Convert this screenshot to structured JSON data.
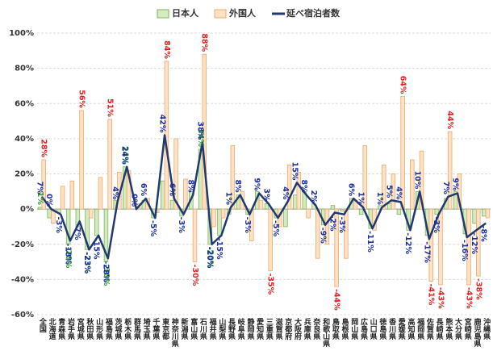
{
  "chart_data": {
    "type": "bar_line",
    "categories": [
      "全国",
      "北海道",
      "青森県",
      "岩手県",
      "宮城県",
      "秋田県",
      "山形県",
      "福島県",
      "茨城県",
      "栃木県",
      "群馬県",
      "埼玉県",
      "千葉県",
      "東京都",
      "神奈川県",
      "新潟県",
      "富山県",
      "石川県",
      "福井県",
      "山梨県",
      "長野県",
      "岐阜県",
      "静岡県",
      "愛知県",
      "三重県",
      "滋賀県",
      "京都府",
      "大阪府",
      "兵庫県",
      "奈良県",
      "和歌山県",
      "鳥取県",
      "島根県",
      "岡山県",
      "広島県",
      "山口県",
      "徳島県",
      "香川県",
      "愛媛県",
      "高知県",
      "福岡県",
      "佐賀県",
      "長崎県",
      "熊本県",
      "大分県",
      "宮崎県",
      "鹿児島県",
      "沖縄県"
    ],
    "series": [
      {
        "name": "日本人",
        "type": "bar",
        "color": "#d5ebbf",
        "edge": "#7ab55c",
        "label_color": "#2e9e3a",
        "values": [
          1,
          -5,
          -2,
          -20,
          -10,
          -23,
          -15,
          -30,
          5,
          24,
          0,
          5,
          -5,
          16,
          5,
          -4,
          10,
          34,
          -20,
          -15,
          -3,
          8,
          -3,
          10,
          3,
          -5,
          -10,
          8,
          10,
          3,
          -9,
          2,
          -1,
          6,
          -3,
          -11,
          2,
          3,
          -3,
          -12,
          10,
          -15,
          -3,
          6,
          10,
          -14,
          -8,
          -4
        ],
        "value_labels": [
          "1%",
          null,
          null,
          "-20%",
          null,
          "-23%",
          null,
          "-30%",
          null,
          "24%",
          null,
          null,
          null,
          null,
          null,
          null,
          null,
          "34%",
          "-20%",
          null,
          null,
          null,
          null,
          null,
          null,
          null,
          null,
          null,
          null,
          null,
          null,
          null,
          null,
          null,
          null,
          null,
          null,
          null,
          null,
          null,
          null,
          null,
          null,
          null,
          null,
          null,
          null,
          null
        ]
      },
      {
        "name": "外国人",
        "type": "bar",
        "color": "#fde2c8",
        "edge": "#f0a868",
        "label_color": "#e02020",
        "values": [
          28,
          -8,
          13,
          16,
          56,
          -5,
          18,
          51,
          21,
          22,
          3,
          6,
          -2,
          84,
          40,
          17,
          -30,
          88,
          -10,
          -5,
          36,
          10,
          -18,
          5,
          -35,
          -10,
          25,
          21,
          -5,
          -28,
          -20,
          -44,
          -28,
          5,
          36,
          -12,
          25,
          20,
          64,
          28,
          33,
          -41,
          -43,
          44,
          20,
          -43,
          -38,
          -5
        ],
        "value_labels": [
          "28%",
          null,
          null,
          null,
          "56%",
          null,
          null,
          "51%",
          null,
          null,
          null,
          null,
          null,
          "84%",
          null,
          null,
          "-30%",
          "88%",
          null,
          null,
          null,
          null,
          null,
          null,
          "-35%",
          null,
          null,
          null,
          null,
          null,
          null,
          "-44%",
          null,
          null,
          null,
          null,
          null,
          null,
          "64%",
          null,
          null,
          "-41%",
          "-43%",
          "44%",
          null,
          "-43%",
          "-38%",
          null
        ]
      },
      {
        "name": "延べ宿泊者数",
        "type": "line",
        "color": "#1f3a6e",
        "label_color": "#1a2fa0",
        "values": [
          7,
          0,
          -3,
          -18,
          -7,
          -23,
          -15,
          -28,
          4,
          24,
          0,
          6,
          -5,
          42,
          6,
          -3,
          8,
          38,
          -20,
          -15,
          1,
          8,
          -3,
          9,
          3,
          -5,
          4,
          15,
          8,
          2,
          -9,
          -2,
          -3,
          6,
          1,
          -11,
          1,
          5,
          4,
          -12,
          10,
          -17,
          -3,
          7,
          9,
          -16,
          -12,
          -8
        ],
        "value_labels": [
          "7%",
          "0%",
          "-3%",
          "-18%",
          "-7%",
          "-23%",
          "-15%",
          "-28%",
          "4%",
          "24%",
          "0%",
          "6%",
          "-5%",
          "42%",
          "6%",
          "-3%",
          "8%",
          "38%",
          "-20%",
          "-15%",
          "1%",
          "8%",
          "-3%",
          "9%",
          "3%",
          "-5%",
          "4%",
          "15%",
          "8%",
          "2%",
          "-9%",
          "-2%",
          "-3%",
          "6%",
          "1%",
          "-11%",
          "1%",
          "5%",
          "4%",
          "-12%",
          "10%",
          "-17%",
          "-3%",
          "7%",
          "9%",
          "-16%",
          "-12%",
          "-8%"
        ]
      }
    ],
    "ylim": [
      -60,
      100
    ],
    "yticks": [
      {
        "value": -60,
        "label": "-60%"
      },
      {
        "value": -40,
        "label": "-40%"
      },
      {
        "value": -20,
        "label": "-20%"
      },
      {
        "value": 0,
        "label": "0%"
      },
      {
        "value": 20,
        "label": "20%"
      },
      {
        "value": 40,
        "label": "40%"
      },
      {
        "value": 60,
        "label": "60%"
      },
      {
        "value": 80,
        "label": "80%"
      },
      {
        "value": 100,
        "label": "100%"
      }
    ],
    "grid": true
  }
}
